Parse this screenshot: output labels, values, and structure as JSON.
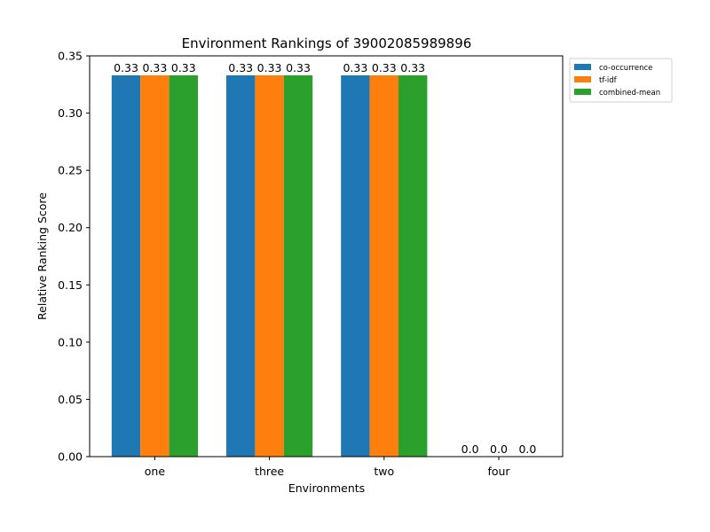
{
  "chart_data": {
    "type": "bar",
    "title": "Environment Rankings of 39002085989896",
    "xlabel": "Environments",
    "ylabel": "Relative Ranking Score",
    "categories": [
      "one",
      "three",
      "two",
      "four"
    ],
    "series": [
      {
        "name": "co-occurrence",
        "values": [
          0.333,
          0.333,
          0.333,
          0.0
        ],
        "labels": [
          "0.33",
          "0.33",
          "0.33",
          "0.0"
        ],
        "color": "#1f77b4"
      },
      {
        "name": "tf-idf",
        "values": [
          0.333,
          0.333,
          0.333,
          0.0
        ],
        "labels": [
          "0.33",
          "0.33",
          "0.33",
          "0.0"
        ],
        "color": "#ff7f0e"
      },
      {
        "name": "combined-mean",
        "values": [
          0.333,
          0.333,
          0.333,
          0.0
        ],
        "labels": [
          "0.33",
          "0.33",
          "0.33",
          "0.0"
        ],
        "color": "#2ca02c"
      }
    ],
    "ylim": [
      0,
      0.35
    ],
    "yticks": [
      "0.00",
      "0.05",
      "0.10",
      "0.15",
      "0.20",
      "0.25",
      "0.30",
      "0.35"
    ],
    "grid": false,
    "legend_position": "outside top-right"
  }
}
